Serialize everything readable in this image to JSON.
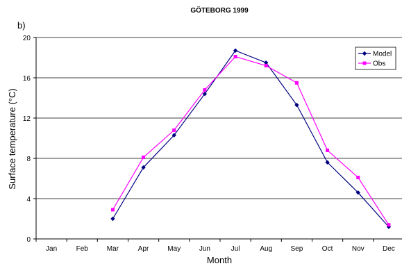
{
  "panel_label": "b)",
  "chart_data": {
    "type": "line",
    "title": "GÖTEBORG 1999",
    "xlabel": "Month",
    "ylabel": "Surface temperature (°C)",
    "categories": [
      "Jan",
      "Feb",
      "Mar",
      "Apr",
      "May",
      "Jun",
      "Jul",
      "Aug",
      "Sep",
      "Oct",
      "Nov",
      "Dec"
    ],
    "ylim": [
      0,
      20
    ],
    "yticks": [
      0,
      4,
      8,
      12,
      16,
      20
    ],
    "grid": true,
    "legend": "top-right",
    "series": [
      {
        "name": "Model",
        "color": "#000080",
        "marker": "diamond",
        "values": [
          null,
          null,
          2.0,
          7.1,
          10.3,
          14.4,
          18.7,
          17.5,
          13.3,
          7.6,
          4.6,
          1.2
        ]
      },
      {
        "name": "Obs",
        "color": "#ff00ff",
        "marker": "square",
        "values": [
          null,
          null,
          2.9,
          8.1,
          10.8,
          14.8,
          18.1,
          17.2,
          15.5,
          8.8,
          6.1,
          1.4
        ]
      }
    ]
  }
}
